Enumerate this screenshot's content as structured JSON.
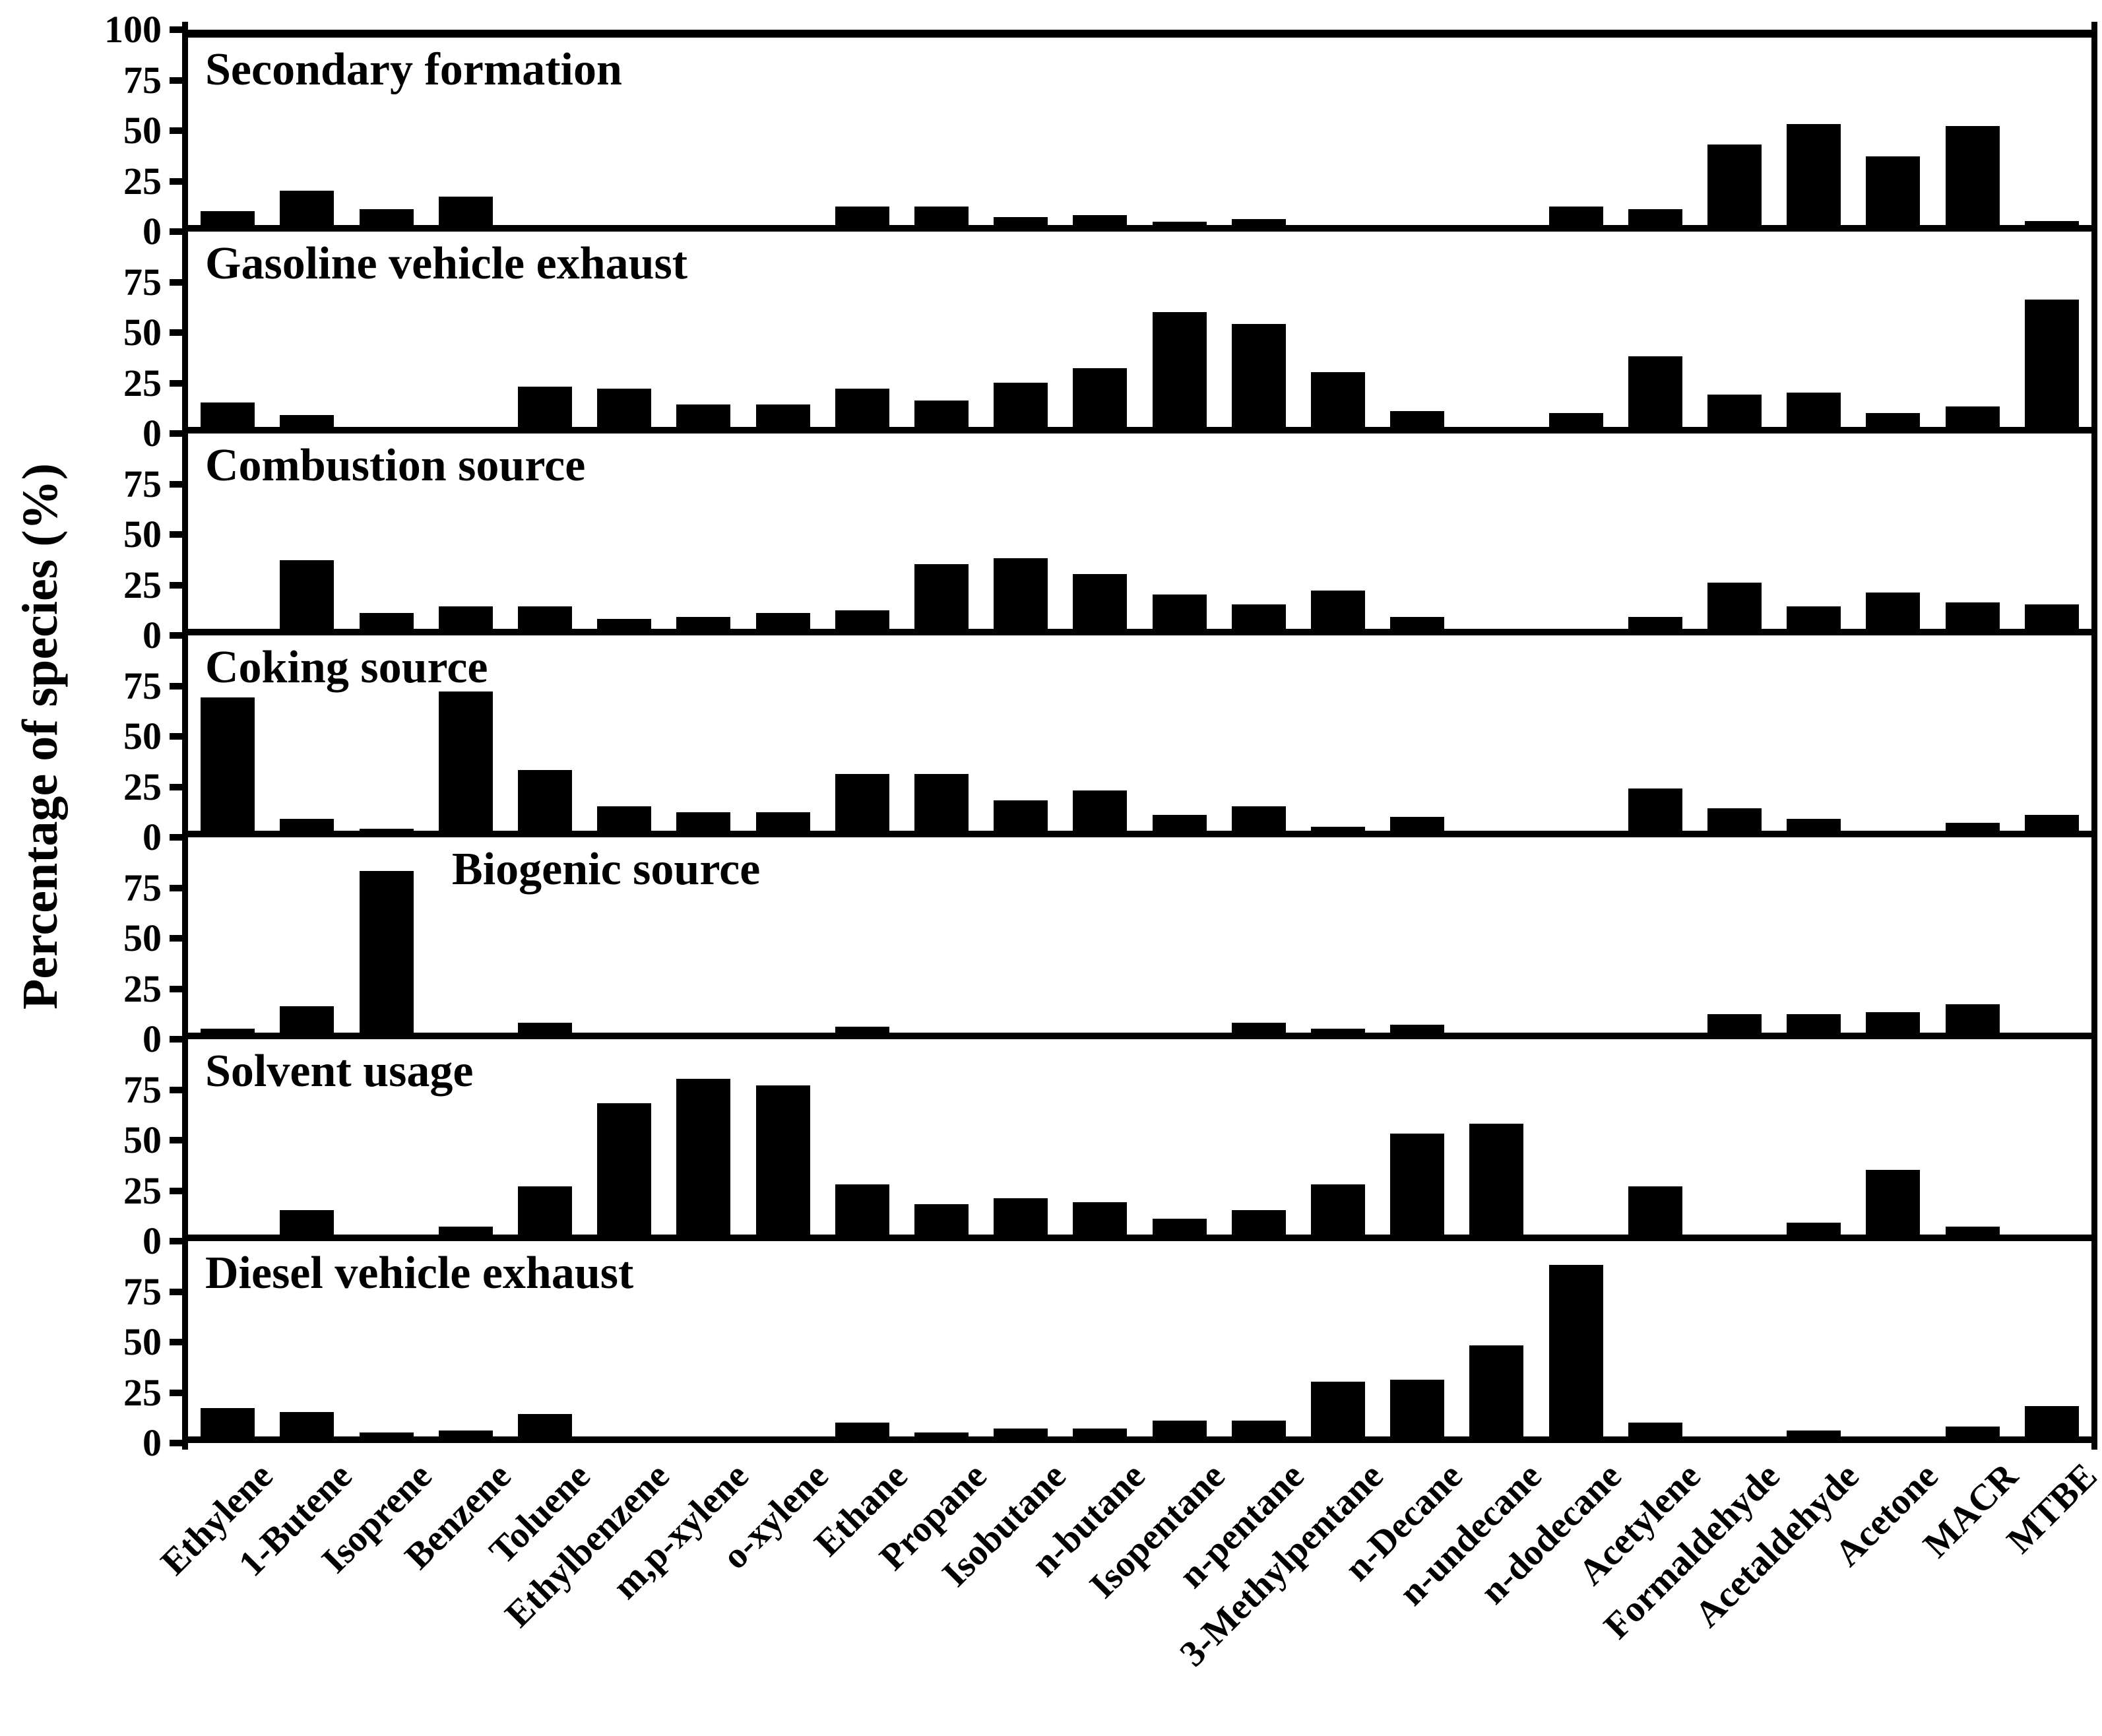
{
  "figure": {
    "background_color": "#ffffff",
    "bar_color": "#000000",
    "axis_color": "#000000",
    "text_color": "#000000"
  },
  "chart_data": {
    "type": "bar",
    "title": "",
    "ylabel": "Percentage of species (%)",
    "xlabel": "",
    "ylim": [
      0,
      100
    ],
    "yticks": [
      0,
      25,
      50,
      75,
      100
    ],
    "grid": false,
    "legend_position": "none",
    "panel_layout": "7 stacked subplots sharing x axis, panel titles inside top-left",
    "categories": [
      "Ethylene",
      "1-Butene",
      "Isoprene",
      "Benzene",
      "Toluene",
      "Ethylbenzene",
      "m,p-xylene",
      "o-xylene",
      "Ethane",
      "Propane",
      "Isobutane",
      "n-butane",
      "Isopentane",
      "n-pentane",
      "3-Methylpentane",
      "n-Decane",
      "n-undecane",
      "n-dodecane",
      "Acetylene",
      "Formaldehyde",
      "Acetaldehyde",
      "Acetone",
      "MACR",
      "MTBE"
    ],
    "series": [
      {
        "name": "Secondary formation",
        "values": [
          7,
          17,
          8,
          14,
          0,
          0,
          0,
          0,
          9,
          9,
          4,
          5,
          1.5,
          3,
          0,
          0,
          0,
          9,
          8,
          40,
          50,
          34,
          49,
          2
        ]
      },
      {
        "name": "Gasoline vehicle exhaust",
        "values": [
          12,
          6,
          0,
          0,
          20,
          19,
          11,
          11,
          19,
          13,
          22,
          29,
          57,
          51,
          27,
          8,
          0,
          7,
          35,
          16,
          17,
          7,
          10,
          63
        ]
      },
      {
        "name": "Combustion source",
        "values": [
          0,
          34,
          8,
          11,
          11,
          5,
          6,
          8,
          9,
          32,
          35,
          27,
          17,
          12,
          19,
          6,
          0,
          0,
          6,
          23,
          11,
          18,
          13,
          12
        ]
      },
      {
        "name": "Coking source",
        "values": [
          66,
          6,
          1,
          69,
          30,
          12,
          9,
          9,
          28,
          28,
          15,
          20,
          8,
          12,
          2,
          7,
          0,
          0,
          21,
          11,
          6,
          0,
          4,
          8
        ]
      },
      {
        "name": "Biogenic source",
        "values": [
          2,
          13,
          80,
          0,
          5,
          0,
          0,
          0,
          3,
          0,
          0,
          0,
          0,
          5,
          2,
          4,
          0,
          0,
          0,
          9,
          9,
          10,
          14,
          0
        ]
      },
      {
        "name": "Solvent usage",
        "values": [
          0,
          12,
          0,
          4,
          24,
          65,
          77,
          74,
          25,
          15,
          18,
          16,
          8,
          12,
          25,
          50,
          55,
          0,
          24,
          0,
          6,
          32,
          4,
          0
        ]
      },
      {
        "name": "Diesel vehicle exhaust",
        "values": [
          14,
          12,
          2,
          3,
          11,
          0,
          0,
          0,
          7,
          2,
          4,
          4,
          8,
          8,
          27,
          28,
          45,
          85,
          7,
          0,
          3,
          0,
          5,
          15
        ]
      }
    ]
  }
}
